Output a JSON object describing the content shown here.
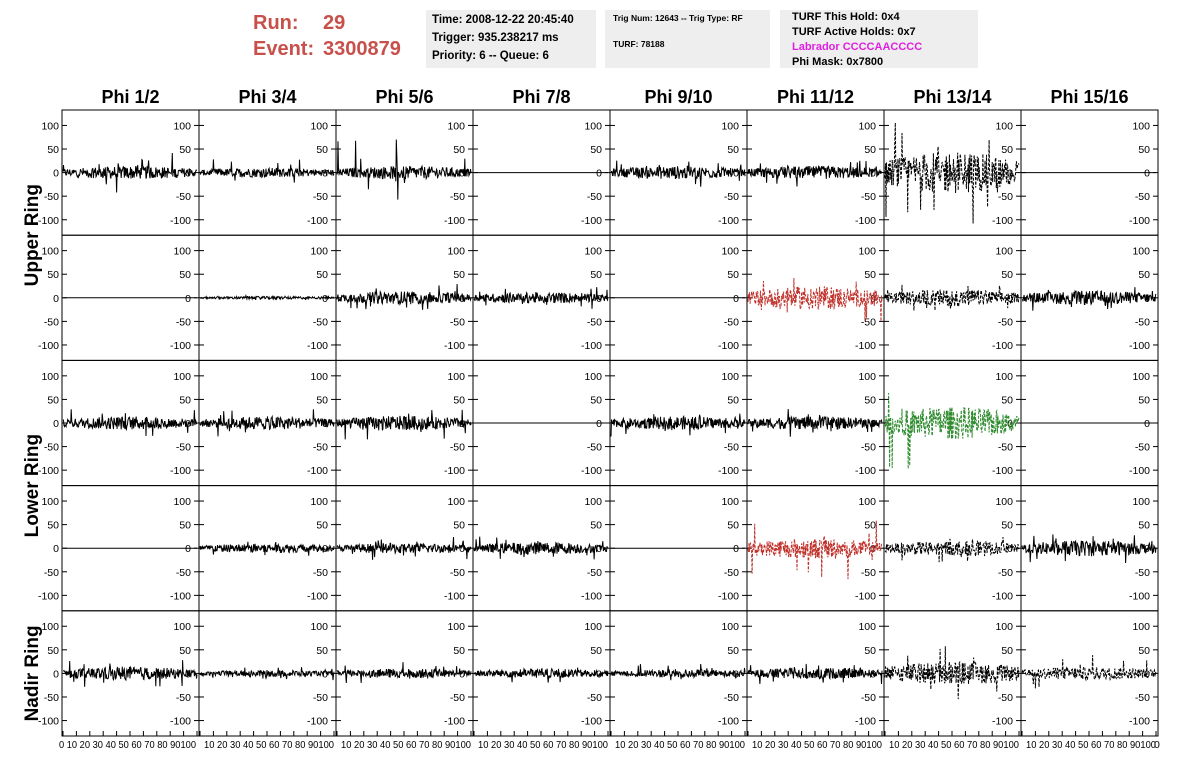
{
  "header": {
    "run_label": "Run:",
    "run_value": "29",
    "event_label": "Event:",
    "event_value": "3300879",
    "time": "Time: 2008-12-22 20:45:40",
    "trigger": "Trigger: 935.238217 ms",
    "priority": "Priority: 6 -- Queue: 6",
    "trig_num": "Trig Num: 12643 -- Trig Type: RF",
    "turf": "TURF: 78188",
    "turf_this_hold": "TURF This Hold: 0x4",
    "turf_active_holds": "TURF Active Holds: 0x7",
    "labrador": "Labrador CCCCAACCCC",
    "phi_mask": "Phi Mask: 0x7800"
  },
  "colors": {
    "run": "#c8504b",
    "labrador": "#e020e0",
    "red_trace": "#c0302a",
    "green_trace": "#2e8b2e",
    "black_trace": "#000000"
  },
  "chart_data": {
    "type": "line",
    "columns": [
      "Phi 1/2",
      "Phi 3/4",
      "Phi 5/6",
      "Phi 7/8",
      "Phi 9/10",
      "Phi 11/12",
      "Phi 13/14",
      "Phi 15/16"
    ],
    "row_labels": [
      "Upper Ring",
      "Lower Ring",
      "Nadir Ring"
    ],
    "xlim": [
      0,
      100
    ],
    "ylim": [
      -120,
      120
    ],
    "x_ticks": [
      0,
      10,
      20,
      30,
      40,
      50,
      60,
      70,
      80,
      90,
      100
    ],
    "y_ticks": [
      100,
      50,
      0,
      -50,
      -100
    ],
    "x_tick_text": [
      "0 10 20 30 40 50 60 70 80 90100",
      "10 20 30 40 50 60 70 80 90100",
      "10 20 30 40 50 60 70 80 90100",
      "10 20 30 40 50 60 70 80 90100",
      "10 20 30 40 50 60 70 80 90100",
      "10 20 30 40 50 60 70 80 90100",
      "10 20 30 40 50 60 70 80 90100",
      "10 20 30 40 50 60 70 80 90100"
    ],
    "x_tick_end": "0",
    "panels": [
      [
        {
          "amp": 14,
          "spike": 45,
          "color": "black",
          "style": "solid"
        },
        {
          "amp": 10,
          "spike": 30,
          "color": "black",
          "style": "solid"
        },
        {
          "amp": 14,
          "spike": 75,
          "color": "black",
          "style": "solid"
        },
        {
          "amp": 0,
          "spike": 0,
          "color": "black",
          "style": "flat"
        },
        {
          "amp": 14,
          "spike": 30,
          "color": "black",
          "style": "solid"
        },
        {
          "amp": 14,
          "spike": 30,
          "color": "black",
          "style": "solid"
        },
        {
          "amp": 45,
          "spike": 120,
          "color": "black",
          "style": "dashed"
        },
        {
          "amp": 0,
          "spike": 0,
          "color": "black",
          "style": "flat"
        }
      ],
      [
        {
          "amp": 0,
          "spike": 0,
          "color": "black",
          "style": "flat"
        },
        {
          "amp": 3,
          "spike": 5,
          "color": "black",
          "style": "solid"
        },
        {
          "amp": 14,
          "spike": 30,
          "color": "black",
          "style": "solid"
        },
        {
          "amp": 12,
          "spike": 25,
          "color": "black",
          "style": "solid"
        },
        {
          "amp": 0,
          "spike": 0,
          "color": "black",
          "style": "flat"
        },
        {
          "amp": 25,
          "spike": 55,
          "color": "red",
          "style": "dashed"
        },
        {
          "amp": 18,
          "spike": 30,
          "color": "black",
          "style": "dashed"
        },
        {
          "amp": 15,
          "spike": 30,
          "color": "black",
          "style": "solid"
        }
      ],
      [
        {
          "amp": 14,
          "spike": 30,
          "color": "black",
          "style": "solid"
        },
        {
          "amp": 14,
          "spike": 30,
          "color": "black",
          "style": "solid"
        },
        {
          "amp": 15,
          "spike": 35,
          "color": "black",
          "style": "solid"
        },
        {
          "amp": 0,
          "spike": 0,
          "color": "black",
          "style": "flat"
        },
        {
          "amp": 14,
          "spike": 30,
          "color": "black",
          "style": "solid"
        },
        {
          "amp": 14,
          "spike": 30,
          "color": "black",
          "style": "solid"
        },
        {
          "amp": 35,
          "spike": 100,
          "color": "green",
          "style": "dashed"
        },
        {
          "amp": 0,
          "spike": 0,
          "color": "black",
          "style": "flat"
        }
      ],
      [
        {
          "amp": 0,
          "spike": 0,
          "color": "black",
          "style": "flat"
        },
        {
          "amp": 10,
          "spike": 20,
          "color": "black",
          "style": "solid"
        },
        {
          "amp": 11,
          "spike": 25,
          "color": "black",
          "style": "solid"
        },
        {
          "amp": 13,
          "spike": 25,
          "color": "black",
          "style": "solid"
        },
        {
          "amp": 0,
          "spike": 0,
          "color": "black",
          "style": "flat"
        },
        {
          "amp": 22,
          "spike": 70,
          "color": "red",
          "style": "dashed"
        },
        {
          "amp": 16,
          "spike": 30,
          "color": "black",
          "style": "dashed"
        },
        {
          "amp": 17,
          "spike": 35,
          "color": "black",
          "style": "solid"
        }
      ],
      [
        {
          "amp": 14,
          "spike": 30,
          "color": "black",
          "style": "solid"
        },
        {
          "amp": 7,
          "spike": 15,
          "color": "black",
          "style": "solid"
        },
        {
          "amp": 10,
          "spike": 25,
          "color": "black",
          "style": "solid"
        },
        {
          "amp": 10,
          "spike": 20,
          "color": "black",
          "style": "solid"
        },
        {
          "amp": 9,
          "spike": 20,
          "color": "black",
          "style": "solid"
        },
        {
          "amp": 12,
          "spike": 25,
          "color": "black",
          "style": "solid"
        },
        {
          "amp": 25,
          "spike": 60,
          "color": "black",
          "style": "dashed"
        },
        {
          "amp": 14,
          "spike": 40,
          "color": "black",
          "style": "dashed"
        }
      ]
    ]
  }
}
